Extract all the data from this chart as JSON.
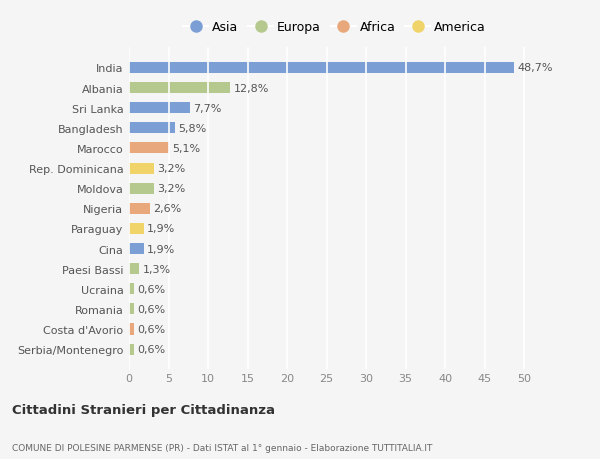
{
  "countries": [
    "India",
    "Albania",
    "Sri Lanka",
    "Bangladesh",
    "Marocco",
    "Rep. Dominicana",
    "Moldova",
    "Nigeria",
    "Paraguay",
    "Cina",
    "Paesi Bassi",
    "Ucraina",
    "Romania",
    "Costa d'Avorio",
    "Serbia/Montenegro"
  ],
  "values": [
    48.7,
    12.8,
    7.7,
    5.8,
    5.1,
    3.2,
    3.2,
    2.6,
    1.9,
    1.9,
    1.3,
    0.6,
    0.6,
    0.6,
    0.6
  ],
  "labels": [
    "48,7%",
    "12,8%",
    "7,7%",
    "5,8%",
    "5,1%",
    "3,2%",
    "3,2%",
    "2,6%",
    "1,9%",
    "1,9%",
    "1,3%",
    "0,6%",
    "0,6%",
    "0,6%",
    "0,6%"
  ],
  "continents": [
    "Asia",
    "Europa",
    "Asia",
    "Asia",
    "Africa",
    "America",
    "Europa",
    "Africa",
    "America",
    "Asia",
    "Europa",
    "Europa",
    "Europa",
    "Africa",
    "Europa"
  ],
  "colors": {
    "Asia": "#7b9fd4",
    "Europa": "#b5c98e",
    "Africa": "#e8a87c",
    "America": "#f0d46a"
  },
  "legend_order": [
    "Asia",
    "Europa",
    "Africa",
    "America"
  ],
  "xlim": [
    0,
    52
  ],
  "xticks": [
    0,
    5,
    10,
    15,
    20,
    25,
    30,
    35,
    40,
    45,
    50
  ],
  "title": "Cittadini Stranieri per Cittadinanza",
  "subtitle": "COMUNE DI POLESINE PARMENSE (PR) - Dati ISTAT al 1° gennaio - Elaborazione TUTTITALIA.IT",
  "background_color": "#f5f5f5",
  "grid_color": "#ffffff",
  "bar_height": 0.55,
  "label_fontsize": 8,
  "ytick_fontsize": 8
}
